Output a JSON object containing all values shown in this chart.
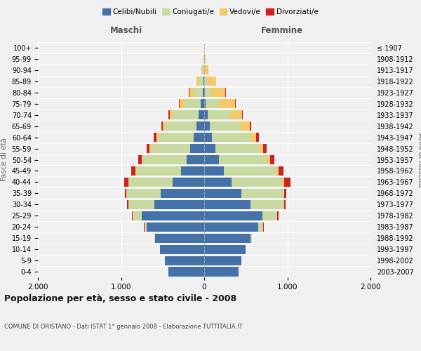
{
  "age_groups": [
    "0-4",
    "5-9",
    "10-14",
    "15-19",
    "20-24",
    "25-29",
    "30-34",
    "35-39",
    "40-44",
    "45-49",
    "50-54",
    "55-59",
    "60-64",
    "65-69",
    "70-74",
    "75-79",
    "80-84",
    "85-89",
    "90-94",
    "95-99",
    "100+"
  ],
  "birth_years": [
    "2003-2007",
    "1998-2002",
    "1993-1997",
    "1988-1992",
    "1983-1987",
    "1978-1982",
    "1973-1977",
    "1968-1972",
    "1963-1967",
    "1958-1962",
    "1953-1957",
    "1948-1952",
    "1943-1947",
    "1938-1942",
    "1933-1937",
    "1928-1932",
    "1923-1927",
    "1918-1922",
    "1913-1917",
    "1908-1912",
    "≤ 1907"
  ],
  "maschi": {
    "celibe": [
      430,
      470,
      530,
      590,
      690,
      750,
      600,
      520,
      380,
      280,
      210,
      165,
      130,
      95,
      70,
      40,
      15,
      8,
      3,
      1,
      0
    ],
    "coniugato": [
      0,
      0,
      0,
      5,
      30,
      110,
      310,
      410,
      520,
      540,
      530,
      480,
      430,
      380,
      310,
      200,
      110,
      50,
      15,
      5,
      1
    ],
    "vedovo": [
      0,
      0,
      0,
      0,
      0,
      0,
      5,
      5,
      10,
      10,
      15,
      15,
      18,
      22,
      35,
      55,
      55,
      35,
      12,
      4,
      1
    ],
    "divorziato": [
      0,
      0,
      0,
      0,
      5,
      10,
      15,
      20,
      50,
      50,
      38,
      32,
      28,
      18,
      12,
      6,
      2,
      1,
      0,
      0,
      0
    ]
  },
  "femmine": {
    "nubile": [
      410,
      445,
      500,
      560,
      650,
      700,
      560,
      450,
      330,
      240,
      175,
      135,
      95,
      65,
      42,
      20,
      9,
      4,
      1,
      0,
      0
    ],
    "coniugata": [
      0,
      0,
      0,
      10,
      55,
      175,
      390,
      500,
      610,
      630,
      580,
      520,
      450,
      375,
      270,
      160,
      72,
      26,
      7,
      2,
      0
    ],
    "vedova": [
      0,
      0,
      0,
      0,
      0,
      5,
      8,
      12,
      18,
      28,
      42,
      58,
      78,
      108,
      145,
      195,
      175,
      115,
      45,
      13,
      3
    ],
    "divorziata": [
      0,
      0,
      0,
      5,
      10,
      18,
      22,
      28,
      80,
      58,
      48,
      42,
      33,
      18,
      9,
      4,
      2,
      1,
      0,
      0,
      0
    ]
  },
  "colors": {
    "celibe": "#4472A8",
    "coniugato": "#C8D9A2",
    "vedovo": "#F5C96A",
    "divorziato": "#CC2222"
  },
  "legend_labels": [
    "Celibi/Nubili",
    "Coniugati/e",
    "Vedovi/e",
    "Divorziati/e"
  ],
  "xlim": 2000,
  "title": "Popolazione per età, sesso e stato civile - 2008",
  "subtitle": "COMUNE DI ORISTANO - Dati ISTAT 1° gennaio 2008 - Elaborazione TUTTITALIA.IT",
  "ylabel_left": "Fasce di età",
  "ylabel_right": "Anni di nascita",
  "xlabel_left": "Maschi",
  "xlabel_right": "Femmine",
  "background_color": "#f0f0f0",
  "grid_color": "#ffffff",
  "bar_height": 0.82
}
